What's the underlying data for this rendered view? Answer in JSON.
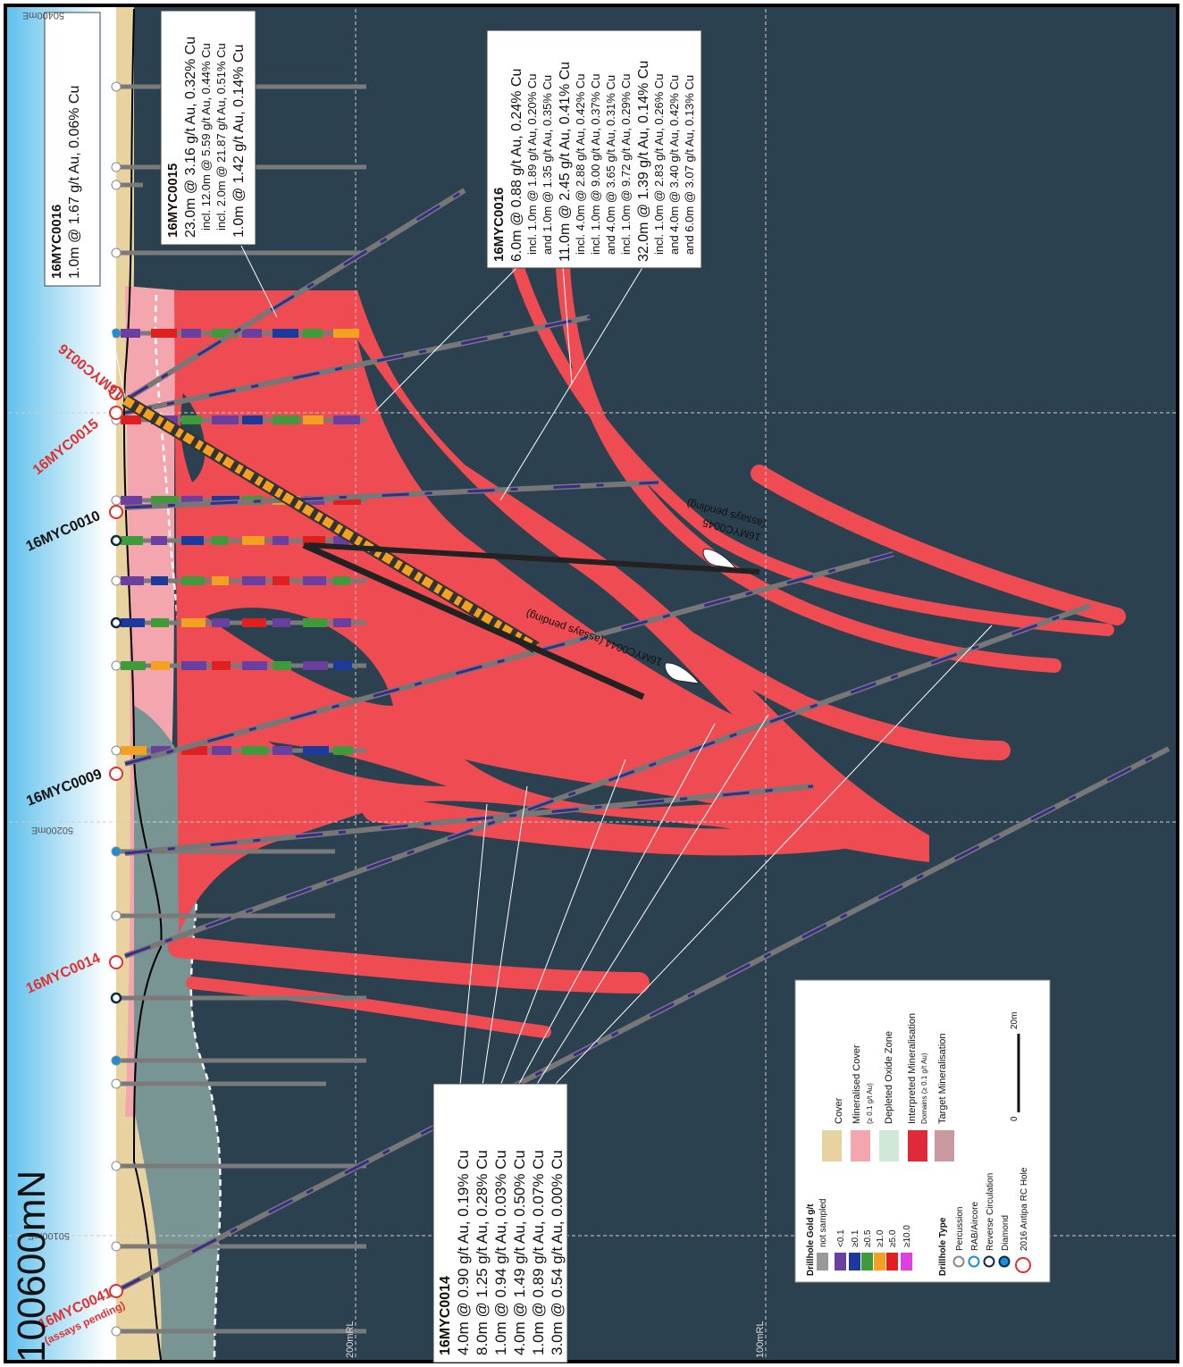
{
  "title": "100600mN",
  "grid_labels": {
    "eastings": [
      "50400mE",
      "50200mE",
      "50100mE"
    ],
    "elevations": [
      "200mRL",
      "100mRL"
    ]
  },
  "hole_labels": [
    "16MYC0016",
    "16MYC0015",
    "16MYC0010",
    "16MYC0009",
    "16MYC0014",
    "16MYC0041"
  ],
  "hole_note": "(assays pending)",
  "pending_labels": [
    {
      "lines": [
        "16MYC0044 (assays pending)"
      ]
    },
    {
      "lines": [
        "16MYC0045",
        "(assays pending)"
      ]
    }
  ],
  "callouts": [
    {
      "title": "16MYC0016",
      "lines": [
        "1.0m @ 1.67 g/t Au, 0.06% Cu"
      ]
    },
    {
      "title": "16MYC0015",
      "lines": [
        "23.0m @ 3.16 g/t Au, 0.32% Cu",
        "incl. 12.0m @ 5.59 g/t Au, 0.44% Cu",
        "incl. 2.0m @ 21.87 g/t Au, 0.51% Cu",
        "1.0m @ 1.42 g/t Au, 0.14% Cu"
      ]
    },
    {
      "title": "16MYC0016",
      "lines": [
        "6.0m @ 0.88 g/t Au, 0.24% Cu",
        "incl. 1.0m @ 1.89 g/t Au, 0.20% Cu",
        "and 1.0m @ 1.35 g/t Au, 0.35% Cu",
        "11.0m @ 2.45 g/t Au, 0.41% Cu",
        "incl. 4.0m @ 2.88 g/t Au, 0.42% Cu",
        "incl. 1.0m @ 9.00 g/t Au, 0.37% Cu",
        "and 4.0m @ 3.65 g/t Au, 0.31% Cu",
        "incl. 1.0m @ 9.72 g/t Au, 0.29% Cu",
        "32.0m @ 1.39 g/t Au, 0.14% Cu",
        "incl. 1.0m @ 2.83 g/t Au, 0.26% Cu",
        "and 4.0m @ 3.40 g/t Au, 0.42% Cu",
        "and 6.0m @ 3.07 g/t Au, 0.13% Cu"
      ]
    },
    {
      "title": "16MYC0014",
      "lines": [
        "4.0m @ 0.90 g/t Au, 0.19% Cu",
        "8.0m @ 1.25 g/t Au, 0.28% Cu",
        "1.0m @ 0.94 g/t Au, 0.03% Cu",
        "4.0m @ 1.49 g/t Au, 0.50% Cu",
        "1.0m @ 0.89 g/t Au, 0.07% Cu",
        "3.0m @ 0.54 g/t Au, 0.00% Cu"
      ]
    }
  ],
  "legend": {
    "gold": {
      "title": "Drillhole Gold g/t",
      "items": [
        "not sampled",
        "<0.1",
        "≥0.1",
        "≥0.5",
        "≥1.0",
        "≥5.0",
        "≥10.0"
      ]
    },
    "type": {
      "title": "Drillhole Type",
      "items": [
        "Percussion",
        "RAB/Aircore",
        "Reverse Circulation",
        "Diamond",
        "2016 Antipa RC Hole"
      ]
    },
    "units": {
      "items": [
        {
          "lines": [
            "Cover"
          ]
        },
        {
          "lines": [
            "Mineralised Cover",
            "(≥ 0.1 g/t Au)"
          ]
        },
        {
          "lines": [
            "Depleted Oxide Zone"
          ]
        },
        {
          "lines": [
            "Interpreted Mineralisation",
            "Domains (≥ 0.1 g/t Au)"
          ]
        },
        {
          "lines": [
            "Target Mineralisation"
          ]
        }
      ]
    },
    "scale": {
      "start": "0",
      "end": "20m"
    }
  }
}
